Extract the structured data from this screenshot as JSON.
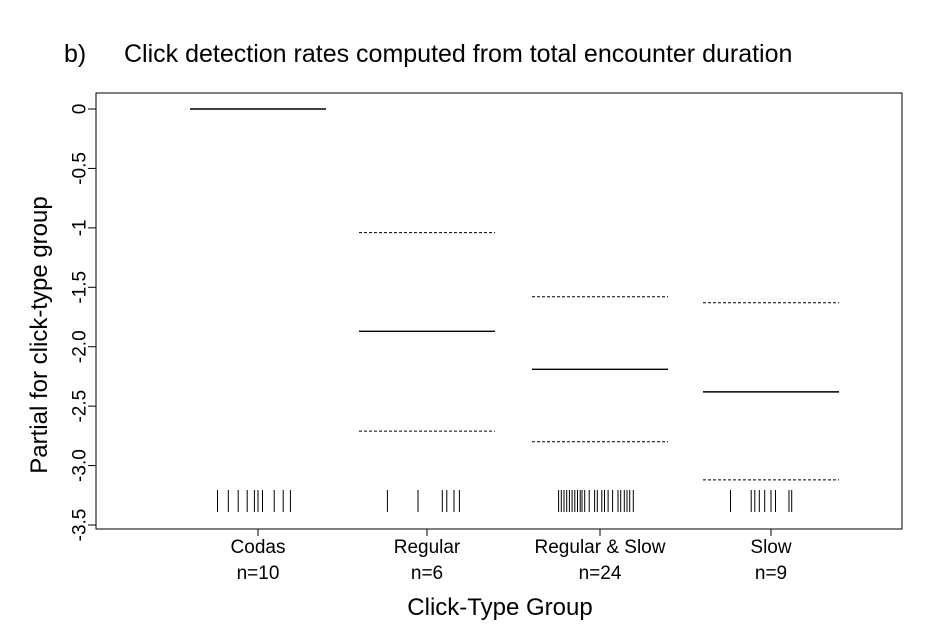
{
  "panel_label": "b)",
  "chart_data": {
    "type": "line",
    "title": "Click detection rates computed from total encounter duration",
    "xlabel": "Click-Type Group",
    "ylabel": "Partial for click-type group",
    "ylim": [
      -3.5,
      0
    ],
    "yticks": [
      {
        "value": 0,
        "label": "0"
      },
      {
        "value": -0.5,
        "label": "-0.5"
      },
      {
        "value": -1,
        "label": "-1"
      },
      {
        "value": -1.5,
        "label": "-1.5"
      },
      {
        "value": -2,
        "label": "-2.0"
      },
      {
        "value": -2.5,
        "label": "-2.5"
      },
      {
        "value": -3,
        "label": "-3.0"
      },
      {
        "value": -3.5,
        "label": "-3.5"
      }
    ],
    "grid": false,
    "legend": "none",
    "categories": [
      "Codas",
      "Regular",
      "Regular & Slow",
      "Slow"
    ],
    "sample_sizes": [
      "n=10",
      "n=6",
      "n=24",
      "n=9"
    ],
    "series": [
      {
        "name": "estimate",
        "values": [
          0,
          -1.87,
          -2.19,
          -2.38
        ]
      },
      {
        "name": "upper bound",
        "values": [
          null,
          -1.04,
          -1.58,
          -1.63
        ]
      },
      {
        "name": "lower bound",
        "values": [
          null,
          -2.71,
          -2.8,
          -3.12
        ]
      }
    ],
    "rug": [
      {
        "category": "Codas",
        "positions": [
          -0.45,
          -0.33,
          -0.22,
          -0.12,
          -0.04,
          0.0,
          0.05,
          0.18,
          0.28,
          0.36
        ]
      },
      {
        "category": "Regular",
        "positions": [
          -0.44,
          -0.1,
          0.17,
          0.22,
          0.3,
          0.36
        ]
      },
      {
        "category": "Regular & Slow",
        "positions": [
          -0.46,
          -0.43,
          -0.4,
          -0.37,
          -0.34,
          -0.31,
          -0.28,
          -0.25,
          -0.22,
          -0.2,
          -0.17,
          -0.12,
          -0.06,
          -0.03,
          0.02,
          0.05,
          0.09,
          0.14,
          0.2,
          0.23,
          0.27,
          0.3,
          0.33,
          0.37
        ]
      },
      {
        "category": "Slow",
        "positions": [
          -0.45,
          -0.22,
          -0.18,
          -0.13,
          -0.07,
          0.0,
          0.05,
          0.2,
          0.23
        ]
      }
    ],
    "colors": {
      "estimate": "#000000",
      "bounds": "#000000",
      "rug": "#000000"
    }
  }
}
